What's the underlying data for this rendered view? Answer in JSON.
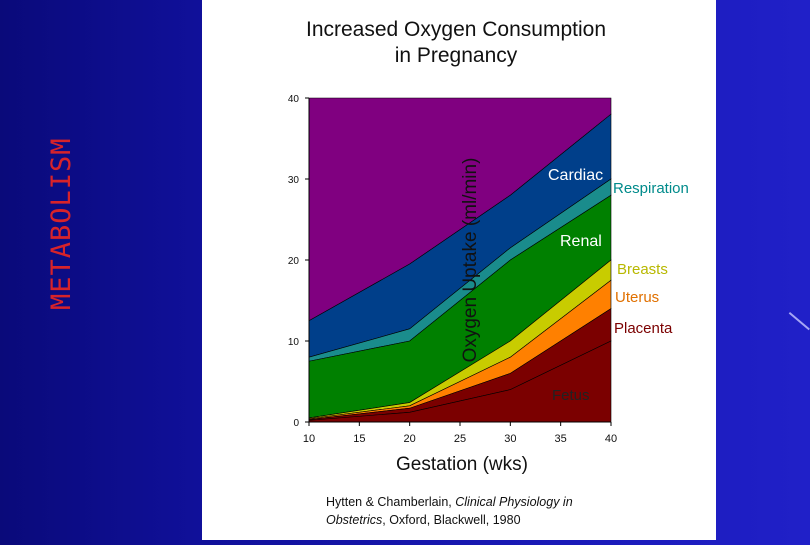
{
  "slide": {
    "side_title": "METABOLISM",
    "citation_prefix": "Hytten & Chamberlain, ",
    "citation_italic_1": "Clinical Physiology in",
    "citation_italic_2": "Obstetrics",
    "citation_suffix": ", Oxford, Blackwell, 1980"
  },
  "colors": {
    "fetus": "#7b0000",
    "placenta": "#ff8000",
    "uterus": "#c8cc00",
    "breasts": "#008000",
    "renal": "#1a8c8c",
    "respiration": "#003f8a",
    "cardiac": "#800080",
    "label_fetus": "#222222",
    "label_placenta": "#7b0000",
    "label_uterus": "#e07000",
    "label_breasts": "#b8b800",
    "label_renal": "#ffffff",
    "label_respiration": "#008b8b",
    "label_cardiac": "#ffffff"
  },
  "chart_data": {
    "type": "area",
    "title_line1": "Increased Oxygen Consumption",
    "title_line2": "in Pregnancy",
    "xlabel": "Gestation (wks)",
    "ylabel": "Oxygen Uptake (ml/min)",
    "x": [
      10,
      20,
      30,
      40
    ],
    "xlim": [
      10,
      40
    ],
    "ylim": [
      0,
      40
    ],
    "xticks": [
      "10",
      "15",
      "20",
      "25",
      "30",
      "35",
      "40"
    ],
    "yticks": [
      "0",
      "10",
      "20",
      "30",
      "40"
    ],
    "top_fill_to": 40,
    "cumulative": [
      {
        "key": "fetus",
        "name": "Fetus",
        "values": [
          0.2,
          1.2,
          4.0,
          10.0
        ]
      },
      {
        "key": "placenta",
        "name": "Placenta",
        "values": [
          0.3,
          1.7,
          6.0,
          14.0
        ]
      },
      {
        "key": "uterus",
        "name": "Uterus",
        "values": [
          0.4,
          2.0,
          8.0,
          17.5
        ]
      },
      {
        "key": "breasts",
        "name": "Breasts",
        "values": [
          0.5,
          2.4,
          10.0,
          20.0
        ]
      },
      {
        "key": "renal",
        "name": "Renal",
        "values": [
          7.5,
          10.0,
          20.0,
          28.0
        ]
      },
      {
        "key": "respiration",
        "name": "Respiration",
        "values": [
          8.0,
          11.5,
          21.5,
          30.0
        ]
      },
      {
        "key": "cardiac",
        "name": "Cardiac",
        "values": [
          12.5,
          19.5,
          28.0,
          38.0
        ]
      }
    ],
    "labels": {
      "cardiac": "Cardiac",
      "respiration": "Respiration",
      "renal": "Renal",
      "breasts": "Breasts",
      "uterus": "Uterus",
      "placenta": "Placenta",
      "fetus": "Fetus"
    }
  }
}
